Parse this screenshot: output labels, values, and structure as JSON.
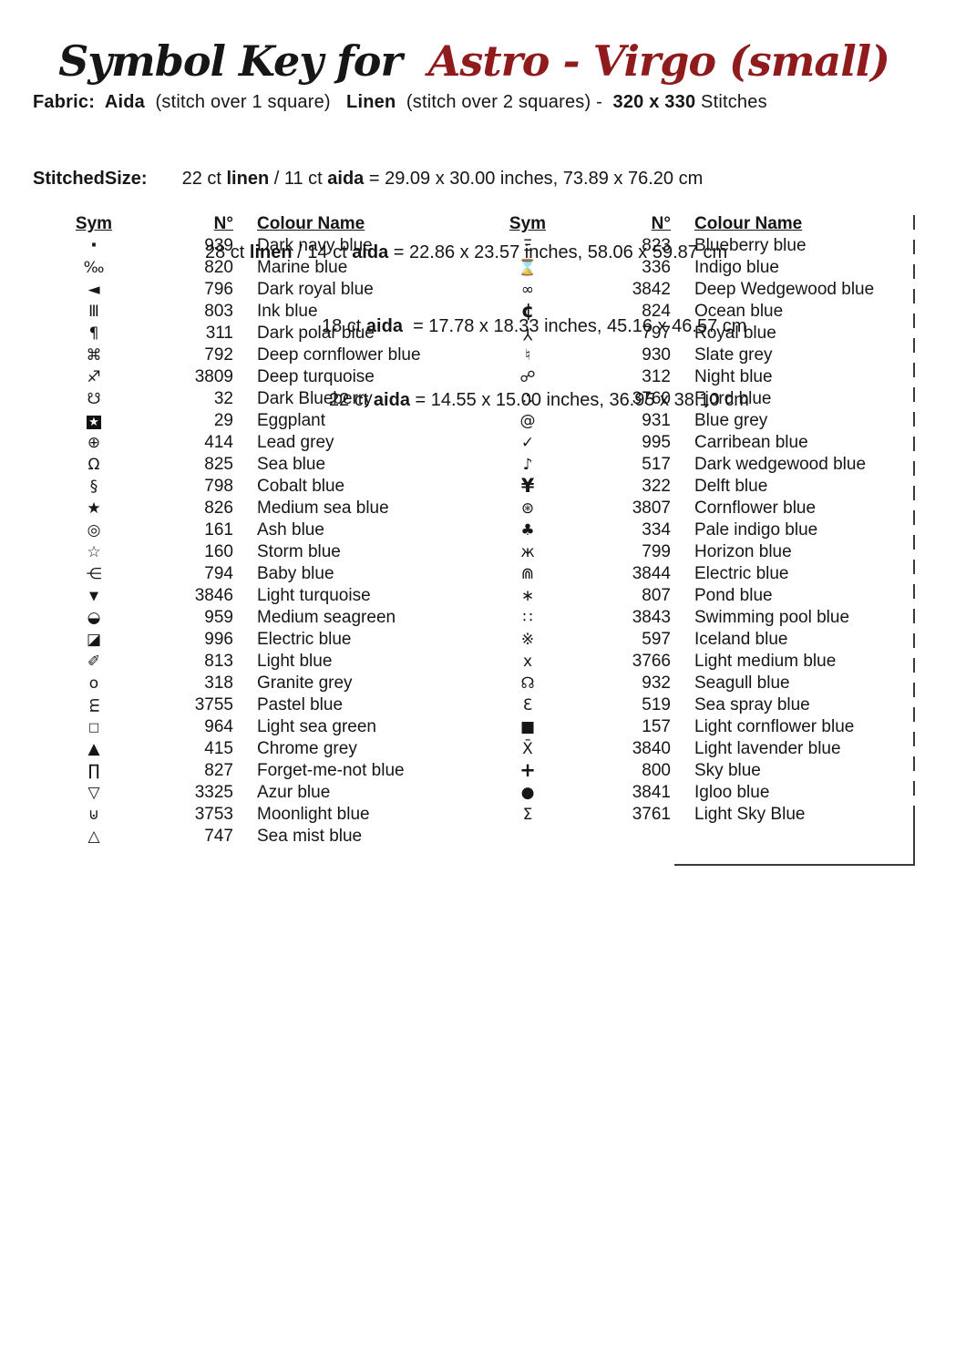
{
  "accent_color": "#8f1b1d",
  "title": {
    "prefix": "Symbol Key for ",
    "name": "Astro - Virgo (small)"
  },
  "fabric_line": {
    "segments": [
      {
        "t": "Fabric:  Aida",
        "b": true
      },
      {
        "t": "  (stitch over 1 square)   ",
        "b": false
      },
      {
        "t": "Linen",
        "b": true
      },
      {
        "t": "  (stitch over 2 squares) -  ",
        "b": false
      },
      {
        "t": "320 x 330",
        "b": true
      },
      {
        "t": " Stitches",
        "b": false
      }
    ]
  },
  "stitched": {
    "label": "StitchedSize:",
    "lines": [
      {
        "segments": [
          {
            "t": "22 ct ",
            "b": false
          },
          {
            "t": "linen",
            "b": true
          },
          {
            "t": " / 11 ct ",
            "b": false
          },
          {
            "t": "aida",
            "b": true
          },
          {
            "t": " = 29.09 x 30.00 inches, 73.89 x 76.20 cm",
            "b": false
          }
        ]
      },
      {
        "segments": [
          {
            "t": "28 ct ",
            "b": false
          },
          {
            "t": "linen",
            "b": true
          },
          {
            "t": " / 14 ct ",
            "b": false
          },
          {
            "t": "aida",
            "b": true
          },
          {
            "t": " = 22.86 x 23.57 inches, 58.06 x 59.87 cm",
            "b": false
          }
        ]
      },
      {
        "segments": [
          {
            "t": "18 ct ",
            "b": false
          },
          {
            "t": "aida",
            "b": true
          },
          {
            "t": "  = 17.78 x 18.33 inches, 45.16 x 46.57 cm",
            "b": false
          }
        ]
      },
      {
        "segments": [
          {
            "t": "22 ct ",
            "b": false
          },
          {
            "t": "aida",
            "b": true
          },
          {
            "t": " = 14.55 x 15.00 inches, 36.95 x 38.10 cm",
            "b": false
          }
        ]
      }
    ]
  },
  "tables": [
    {
      "headers": {
        "sym": "Sym",
        "num": "N°",
        "name": "Colour Name"
      },
      "rows": [
        {
          "s": "·",
          "k": "big",
          "n": "939",
          "c": "Dark navy blue"
        },
        {
          "s": "‰",
          "n": "820",
          "c": "Marine blue"
        },
        {
          "s": "◄",
          "n": "796",
          "c": "Dark royal blue"
        },
        {
          "s": "Ⅲ",
          "n": "803",
          "c": "Ink blue"
        },
        {
          "s": "¶",
          "n": "311",
          "c": "Dark polar blue"
        },
        {
          "s": "⌘",
          "n": "792",
          "c": "Deep cornflower blue"
        },
        {
          "s": "♐",
          "n": "3809",
          "c": "Deep turquoise"
        },
        {
          "s": "☋",
          "n": "32",
          "c": "Dark Blueberry"
        },
        {
          "s": "★",
          "k": "inv",
          "n": "29",
          "c": "Eggplant"
        },
        {
          "s": "⊕",
          "n": "414",
          "c": "Lead grey"
        },
        {
          "s": "Ω",
          "n": "825",
          "c": "Sea blue"
        },
        {
          "s": "§",
          "n": "798",
          "c": "Cobalt blue"
        },
        {
          "s": "★",
          "n": "826",
          "c": "Medium sea blue"
        },
        {
          "s": "◎",
          "n": "161",
          "c": "Ash blue"
        },
        {
          "s": "☆",
          "n": "160",
          "c": "Storm blue"
        },
        {
          "s": "⋲",
          "n": "794",
          "c": "Baby blue"
        },
        {
          "s": "▼",
          "k": "sm",
          "n": "3846",
          "c": "Light turquoise"
        },
        {
          "s": "◒",
          "n": "959",
          "c": "Medium seagreen"
        },
        {
          "s": "◪",
          "n": "996",
          "c": "Electric blue"
        },
        {
          "s": "✐",
          "n": "813",
          "c": "Light blue"
        },
        {
          "s": "o",
          "n": "318",
          "c": "Granite grey"
        },
        {
          "s": "m",
          "k": "rot270",
          "n": "3755",
          "c": "Pastel blue"
        },
        {
          "s": "□",
          "k": "sm",
          "n": "964",
          "c": "Light sea green"
        },
        {
          "s": "▲",
          "n": "415",
          "c": "Chrome grey"
        },
        {
          "s": "∏",
          "n": "827",
          "c": "Forget-me-not blue"
        },
        {
          "s": "▽",
          "n": "3325",
          "c": "Azur blue"
        },
        {
          "s": "⊍",
          "n": "3753",
          "c": "Moonlight blue"
        },
        {
          "s": "△",
          "n": "747",
          "c": "Sea mist blue"
        }
      ]
    },
    {
      "headers": {
        "sym": "Sym",
        "num": "N°",
        "name": "Colour Name"
      },
      "rows": [
        {
          "s": "Ξ",
          "n": "823",
          "c": "Blueberry blue"
        },
        {
          "s": "⌛",
          "n": "336",
          "c": "Indigo blue"
        },
        {
          "s": "∞",
          "n": "3842",
          "c": "Deep Wedgewood blue"
        },
        {
          "s": "¢",
          "k": "big",
          "n": "824",
          "c": "Ocean blue"
        },
        {
          "s": "Y",
          "k": "rot180",
          "n": "797",
          "c": "Royal blue"
        },
        {
          "s": "♮",
          "n": "930",
          "c": "Slate grey"
        },
        {
          "s": "☍",
          "n": "312",
          "c": "Night blue"
        },
        {
          "s": "∴",
          "n": "3760",
          "c": "Fjord blue"
        },
        {
          "s": "@",
          "n": "931",
          "c": "Blue grey"
        },
        {
          "s": "✓",
          "n": "995",
          "c": "Carribean blue"
        },
        {
          "s": "♪",
          "n": "517",
          "c": "Dark wedgewood blue"
        },
        {
          "s": "¥",
          "k": "big",
          "n": "322",
          "c": "Delft blue"
        },
        {
          "s": "⊛",
          "n": "3807",
          "c": "Cornflower blue"
        },
        {
          "s": "♣",
          "n": "334",
          "c": "Pale indigo blue"
        },
        {
          "s": "ж",
          "n": "799",
          "c": "Horizon blue"
        },
        {
          "s": "⋒",
          "n": "3844",
          "c": "Electric blue"
        },
        {
          "s": "∗",
          "n": "807",
          "c": "Pond blue"
        },
        {
          "s": "∷",
          "n": "3843",
          "c": "Swimming pool blue"
        },
        {
          "s": "※",
          "n": "597",
          "c": "Iceland blue"
        },
        {
          "s": "x",
          "n": "3766",
          "c": "Light medium blue"
        },
        {
          "s": "☊",
          "n": "932",
          "c": "Seagull blue"
        },
        {
          "s": "Ɛ",
          "n": "519",
          "c": "Sea spray blue"
        },
        {
          "s": "■",
          "n": "157",
          "c": "Light cornflower blue"
        },
        {
          "s": "X̄",
          "n": "3840",
          "c": "Light lavender blue"
        },
        {
          "s": "+",
          "k": "big",
          "n": "800",
          "c": "Sky blue"
        },
        {
          "s": "●",
          "n": "3841",
          "c": "Igloo blue"
        },
        {
          "s": "Σ",
          "n": "3761",
          "c": "Light Sky Blue"
        }
      ]
    }
  ]
}
